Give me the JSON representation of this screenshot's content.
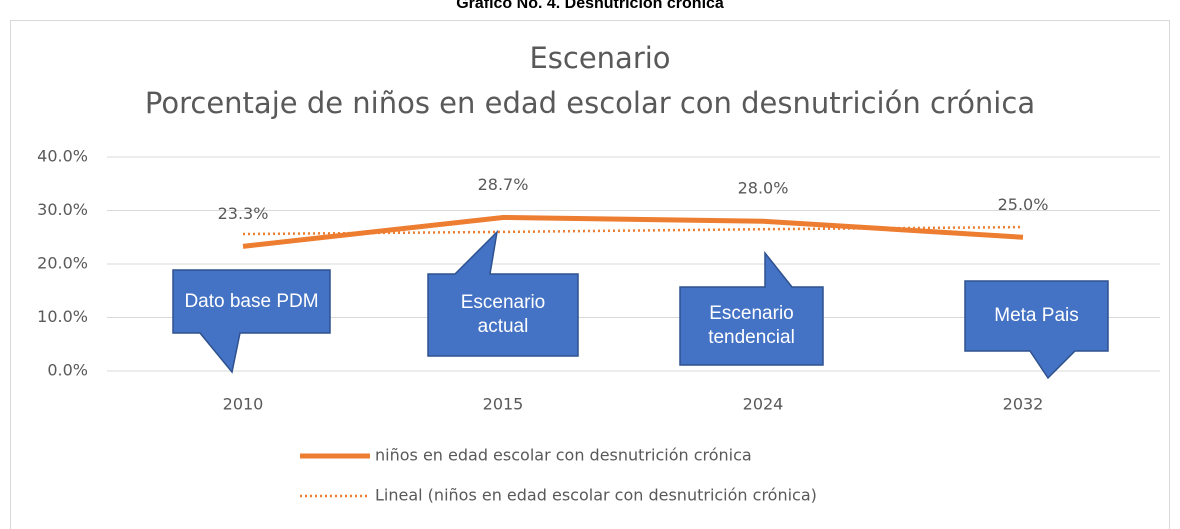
{
  "header": "Gráfico No. 4. Desnutrición crónica",
  "chart_data": {
    "type": "line",
    "title": "Escenario",
    "subtitle": "Porcentaje de niños en edad escolar con desnutrición crónica",
    "categories": [
      "2010",
      "2015",
      "2024",
      "2032"
    ],
    "series": [
      {
        "name": "niños en edad escolar con desnutrición crónica",
        "color": "#ed7d31",
        "values": [
          23.3,
          28.7,
          28.0,
          25.0
        ],
        "value_labels": [
          "23.3%",
          "28.7%",
          "28.0%",
          "25.0%"
        ]
      },
      {
        "name": "Lineal (niños en edad escolar con desnutrición crónica)",
        "color": "#ed7d31",
        "dashed": true,
        "values": [
          25.6,
          26.0,
          26.5,
          26.9
        ]
      }
    ],
    "ylim": [
      0,
      40
    ],
    "yticks": [
      {
        "value": 0,
        "label": "0.0%"
      },
      {
        "value": 10,
        "label": "10.0%"
      },
      {
        "value": 20,
        "label": "20.0%"
      },
      {
        "value": 30,
        "label": "30.0%"
      },
      {
        "value": 40,
        "label": "40.0%"
      }
    ],
    "grid": true,
    "legend": "bottom",
    "annotations": [
      {
        "text": "Dato base PDM",
        "color": "#4472c4"
      },
      {
        "text": "Escenario actual",
        "color": "#4472c4"
      },
      {
        "text": "Escenario tendencial",
        "color": "#4472c4"
      },
      {
        "text": "Meta Pais",
        "color": "#4472c4"
      }
    ]
  }
}
